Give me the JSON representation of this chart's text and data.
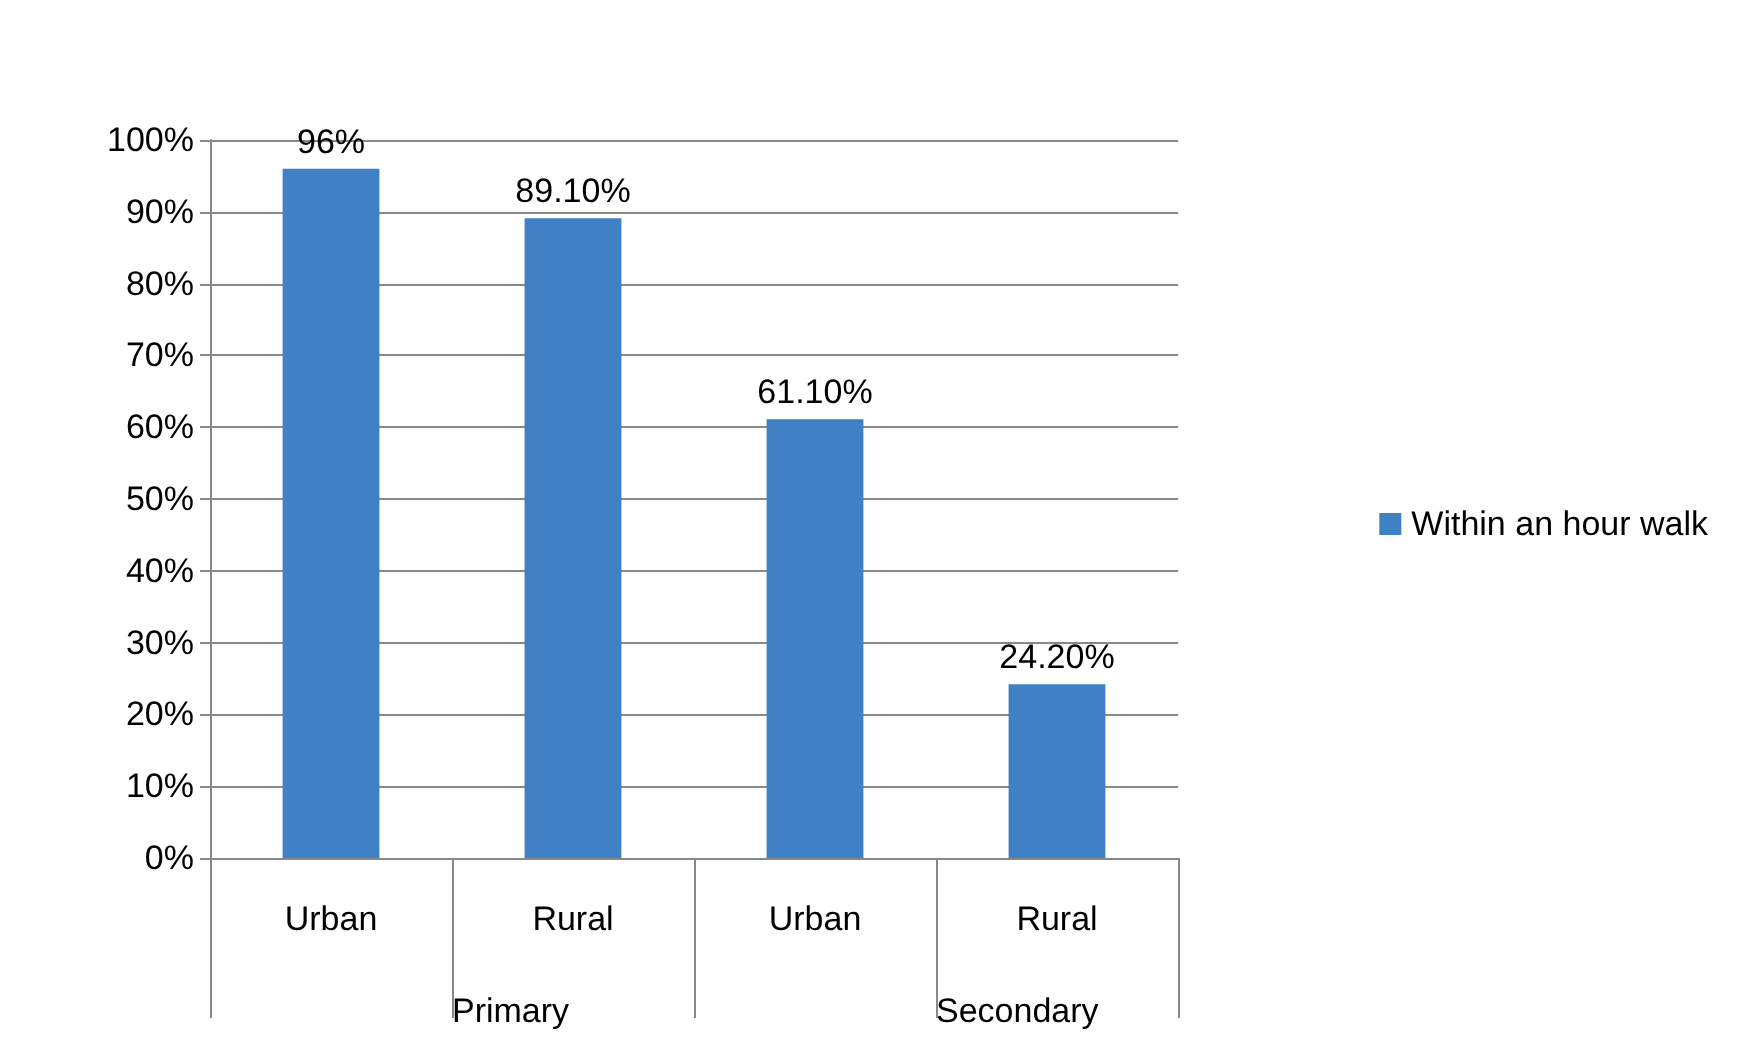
{
  "chart_data": {
    "type": "bar",
    "categories": [
      "Urban",
      "Rural",
      "Urban",
      "Rural"
    ],
    "series": [
      {
        "name": "Within an hour walk",
        "color": "#4080c4",
        "values": [
          96,
          89.1,
          61.1,
          24.2
        ],
        "value_labels": [
          "96%",
          "89.10%",
          "61.10%",
          "24.20%"
        ]
      }
    ],
    "ylim": [
      0,
      100
    ],
    "yticks": [
      {
        "value": 0,
        "label": "0%"
      },
      {
        "value": 10,
        "label": "10%"
      },
      {
        "value": 20,
        "label": "20%"
      },
      {
        "value": 30,
        "label": "30%"
      },
      {
        "value": 40,
        "label": "40%"
      },
      {
        "value": 50,
        "label": "50%"
      },
      {
        "value": 60,
        "label": "60%"
      },
      {
        "value": 70,
        "label": "70%"
      },
      {
        "value": 80,
        "label": "80%"
      },
      {
        "value": 90,
        "label": "90%"
      },
      {
        "value": 100,
        "label": "100%"
      }
    ],
    "annotations": [
      "Primary",
      "Secondary"
    ],
    "grid": "y",
    "legend": "right"
  }
}
